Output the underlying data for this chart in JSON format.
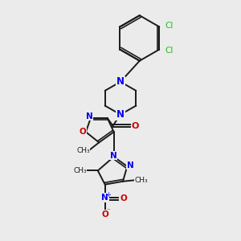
{
  "bg_color": "#ebebeb",
  "bond_color": "#1a1a1a",
  "N_color": "#0000ee",
  "O_color": "#cc0000",
  "Cl_color": "#22bb22",
  "bond_width": 1.4,
  "fig_w": 3.0,
  "fig_h": 3.0,
  "dpi": 100,
  "xlim": [
    0,
    10
  ],
  "ylim": [
    0,
    10
  ]
}
